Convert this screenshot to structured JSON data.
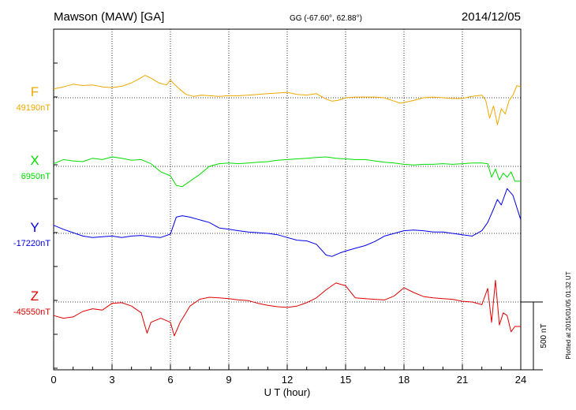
{
  "chart_data": {
    "type": "line",
    "title": "Mawson (MAW)  [GA]",
    "subtitle": "GG (-67.60°,  62.88°)",
    "date": "2014/12/05",
    "xlabel": "U T (hour)",
    "xlim": [
      0,
      24
    ],
    "x_ticks": [
      "0",
      "3",
      "6",
      "9",
      "12",
      "15",
      "18",
      "21",
      "24"
    ],
    "grid": true,
    "scale_label": "500 nT",
    "scale_nT": 500,
    "footer": "Plotted at 2015/01/05 01:32 UT",
    "series": [
      {
        "name": "F",
        "baseline_label": "49190nT",
        "baseline_nT": 49190,
        "color": "#f0a800",
        "offset_nT": 0,
        "x": [
          0,
          0.5,
          1,
          1.5,
          2,
          2.5,
          3,
          3.5,
          4,
          4.4,
          4.7,
          5,
          5.4,
          5.8,
          6,
          6.2,
          6.5,
          6.8,
          7.2,
          7.6,
          8,
          8.5,
          9,
          9.5,
          10,
          10.5,
          11,
          11.5,
          12,
          12.5,
          13,
          13.5,
          14,
          14.3,
          14.6,
          15,
          15.5,
          16,
          16.5,
          17,
          17.5,
          17.8,
          18,
          18.5,
          19,
          19.5,
          20,
          20.5,
          21,
          21.5,
          22,
          22.2,
          22.4,
          22.6,
          22.8,
          23,
          23.2,
          23.4,
          23.6,
          23.8,
          24
        ],
        "values": [
          65,
          80,
          100,
          90,
          95,
          80,
          75,
          85,
          110,
          140,
          165,
          145,
          110,
          95,
          130,
          100,
          60,
          25,
          10,
          20,
          15,
          10,
          15,
          15,
          20,
          25,
          30,
          35,
          40,
          25,
          20,
          30,
          -10,
          -25,
          -20,
          0,
          5,
          5,
          5,
          0,
          -25,
          -40,
          -35,
          -20,
          0,
          5,
          0,
          -5,
          -5,
          10,
          20,
          -20,
          -150,
          -60,
          -200,
          -80,
          -120,
          -20,
          20,
          90,
          80
        ]
      },
      {
        "name": "X",
        "baseline_label": "6950nT",
        "baseline_nT": 6950,
        "color": "#00dd00",
        "offset_nT": 0,
        "x": [
          0,
          0.5,
          1,
          1.5,
          2,
          2.5,
          3,
          3.5,
          4,
          4.5,
          5,
          5.5,
          6,
          6.3,
          6.6,
          7,
          7.5,
          8,
          8.5,
          9,
          9.5,
          10,
          10.5,
          11,
          11.5,
          12,
          12.5,
          13,
          13.5,
          14,
          14.5,
          15,
          15.5,
          16,
          16.5,
          17,
          17.5,
          18,
          18.5,
          19,
          19.5,
          20,
          20.5,
          21,
          21.5,
          22,
          22.3,
          22.5,
          22.7,
          22.9,
          23.1,
          23.3,
          23.5,
          23.7,
          24
        ],
        "values": [
          20,
          50,
          40,
          35,
          60,
          50,
          70,
          60,
          45,
          50,
          20,
          -40,
          -70,
          -140,
          -150,
          -110,
          -60,
          0,
          20,
          25,
          20,
          25,
          30,
          35,
          45,
          50,
          55,
          60,
          65,
          70,
          60,
          55,
          50,
          50,
          40,
          30,
          25,
          15,
          10,
          15,
          15,
          20,
          15,
          20,
          25,
          25,
          20,
          -80,
          -20,
          -100,
          -50,
          -80,
          -40,
          -110,
          -110
        ]
      },
      {
        "name": "Y",
        "baseline_label": "-17220nT",
        "baseline_nT": -17220,
        "color": "#0000e8",
        "offset_nT": 0,
        "x": [
          0,
          0.5,
          1,
          1.5,
          2,
          2.5,
          3,
          3.5,
          4,
          4.5,
          5,
          5.5,
          6,
          6.3,
          6.6,
          7,
          7.5,
          8,
          8.5,
          9,
          9.5,
          10,
          10.5,
          11,
          11.5,
          12,
          12.5,
          13,
          13.5,
          14,
          14.3,
          14.7,
          15,
          15.5,
          16,
          16.5,
          17,
          17.5,
          18,
          18.5,
          19,
          19.5,
          20,
          20.5,
          21,
          21.5,
          22,
          22.3,
          22.6,
          22.8,
          23,
          23.3,
          23.6,
          24
        ],
        "values": [
          60,
          30,
          5,
          -20,
          -30,
          -25,
          -20,
          -30,
          -20,
          -15,
          -25,
          -30,
          -5,
          120,
          130,
          120,
          100,
          80,
          40,
          30,
          20,
          10,
          5,
          0,
          -10,
          -30,
          -50,
          -55,
          -80,
          -160,
          -170,
          -145,
          -130,
          -110,
          -90,
          -60,
          -20,
          0,
          20,
          25,
          20,
          10,
          10,
          0,
          -10,
          -20,
          20,
          80,
          180,
          250,
          210,
          330,
          280,
          100
        ]
      },
      {
        "name": "Z",
        "baseline_label": "-45550nT",
        "baseline_nT": -45550,
        "color": "#e00000",
        "offset_nT": 0,
        "x": [
          0,
          0.5,
          1,
          1.5,
          2,
          2.5,
          3,
          3.5,
          4,
          4.5,
          4.8,
          5,
          5.5,
          6,
          6.2,
          6.5,
          6.8,
          7,
          7.5,
          8,
          8.5,
          9,
          9.5,
          10,
          10.5,
          11,
          11.5,
          12,
          12.5,
          13,
          13.5,
          14,
          14.5,
          15,
          15.5,
          16,
          16.5,
          17,
          17.5,
          18,
          18.5,
          19,
          19.5,
          20,
          20.5,
          21,
          21.5,
          22,
          22.3,
          22.5,
          22.7,
          22.9,
          23.1,
          23.3,
          23.5,
          23.7,
          24
        ],
        "values": [
          -100,
          -120,
          -110,
          -70,
          -50,
          -60,
          -10,
          -5,
          -30,
          -80,
          -230,
          -150,
          -120,
          -150,
          -250,
          -150,
          -80,
          -30,
          20,
          35,
          30,
          25,
          15,
          10,
          -10,
          -25,
          -35,
          -40,
          -30,
          -5,
          30,
          90,
          140,
          120,
          30,
          25,
          20,
          15,
          45,
          105,
          70,
          40,
          30,
          25,
          20,
          5,
          0,
          -20,
          100,
          -150,
          160,
          -170,
          -80,
          -100,
          -220,
          -180,
          -180
        ]
      }
    ]
  }
}
